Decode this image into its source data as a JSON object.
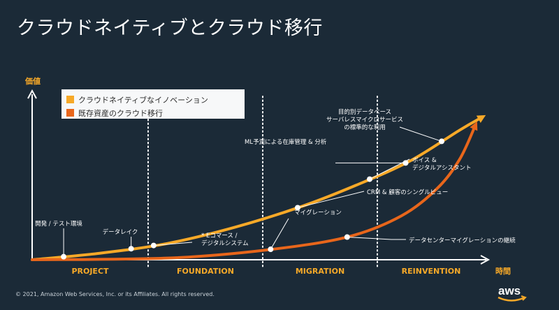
{
  "title": "クラウドネイティブとクラウド移行",
  "footer": "© 2021, Amazon Web Services, Inc. or its Affiliates. All rights reserved.",
  "logo_text": "aws",
  "colors": {
    "background": "#1b2a37",
    "orange": "#f7a928",
    "dark_orange": "#e8661b",
    "white": "#ffffff"
  },
  "chart_data": {
    "type": "line",
    "ylabel": "価値",
    "xlabel": "時間",
    "legend": [
      {
        "name": "クラウドネイティブなイノベーション",
        "color": "#f7a928"
      },
      {
        "name": "既存資産のクラウド移行",
        "color": "#e8661b"
      }
    ],
    "phases": [
      "PROJECT",
      "FOUNDATION",
      "MIGRATION",
      "REINVENTION"
    ],
    "series": [
      {
        "name": "クラウドネイティブなイノベーション",
        "points": [
          {
            "t": 0.0,
            "v": 0.0
          },
          {
            "t": 0.15,
            "v": 0.04
          },
          {
            "t": 0.3,
            "v": 0.1
          },
          {
            "t": 0.45,
            "v": 0.2
          },
          {
            "t": 0.6,
            "v": 0.33
          },
          {
            "t": 0.72,
            "v": 0.46
          },
          {
            "t": 0.84,
            "v": 0.61
          },
          {
            "t": 0.95,
            "v": 0.8
          },
          {
            "t": 1.0,
            "v": 0.88
          }
        ]
      },
      {
        "name": "既存資産のクラウド移行",
        "points": [
          {
            "t": 0.0,
            "v": 0.0
          },
          {
            "t": 0.3,
            "v": 0.01
          },
          {
            "t": 0.52,
            "v": 0.06
          },
          {
            "t": 0.7,
            "v": 0.14
          },
          {
            "t": 0.82,
            "v": 0.27
          },
          {
            "t": 0.9,
            "v": 0.44
          },
          {
            "t": 0.95,
            "v": 0.62
          },
          {
            "t": 0.985,
            "v": 0.83
          }
        ]
      }
    ],
    "annotations": [
      {
        "series": 0,
        "t": 0.07,
        "label": [
          "開発 / テスト環境"
        ]
      },
      {
        "series": 0,
        "t": 0.22,
        "label": [
          "データレイク"
        ]
      },
      {
        "series": 0,
        "t": 0.27,
        "label": [
          "* Eコマース /",
          "デジタルシステム"
        ]
      },
      {
        "series": 1,
        "t": 0.53,
        "label": [
          "マイグレーション"
        ]
      },
      {
        "series": 1,
        "t": 0.7,
        "label": [
          "データセンターマイグレーションの継続"
        ]
      },
      {
        "series": 0,
        "t": 0.59,
        "label": [
          "CRM & 顧客のシングルビュー"
        ]
      },
      {
        "series": 0,
        "t": 0.75,
        "label": [
          "ボイス &",
          "デジタルアシスタント"
        ]
      },
      {
        "series": 0,
        "t": 0.83,
        "label": [
          "ML予測による在庫管理 & 分析"
        ]
      },
      {
        "series": 0,
        "t": 0.91,
        "label": [
          "目的別データベース",
          "サーバレスマイクロサービス",
          "の標準的な利用"
        ]
      }
    ]
  }
}
